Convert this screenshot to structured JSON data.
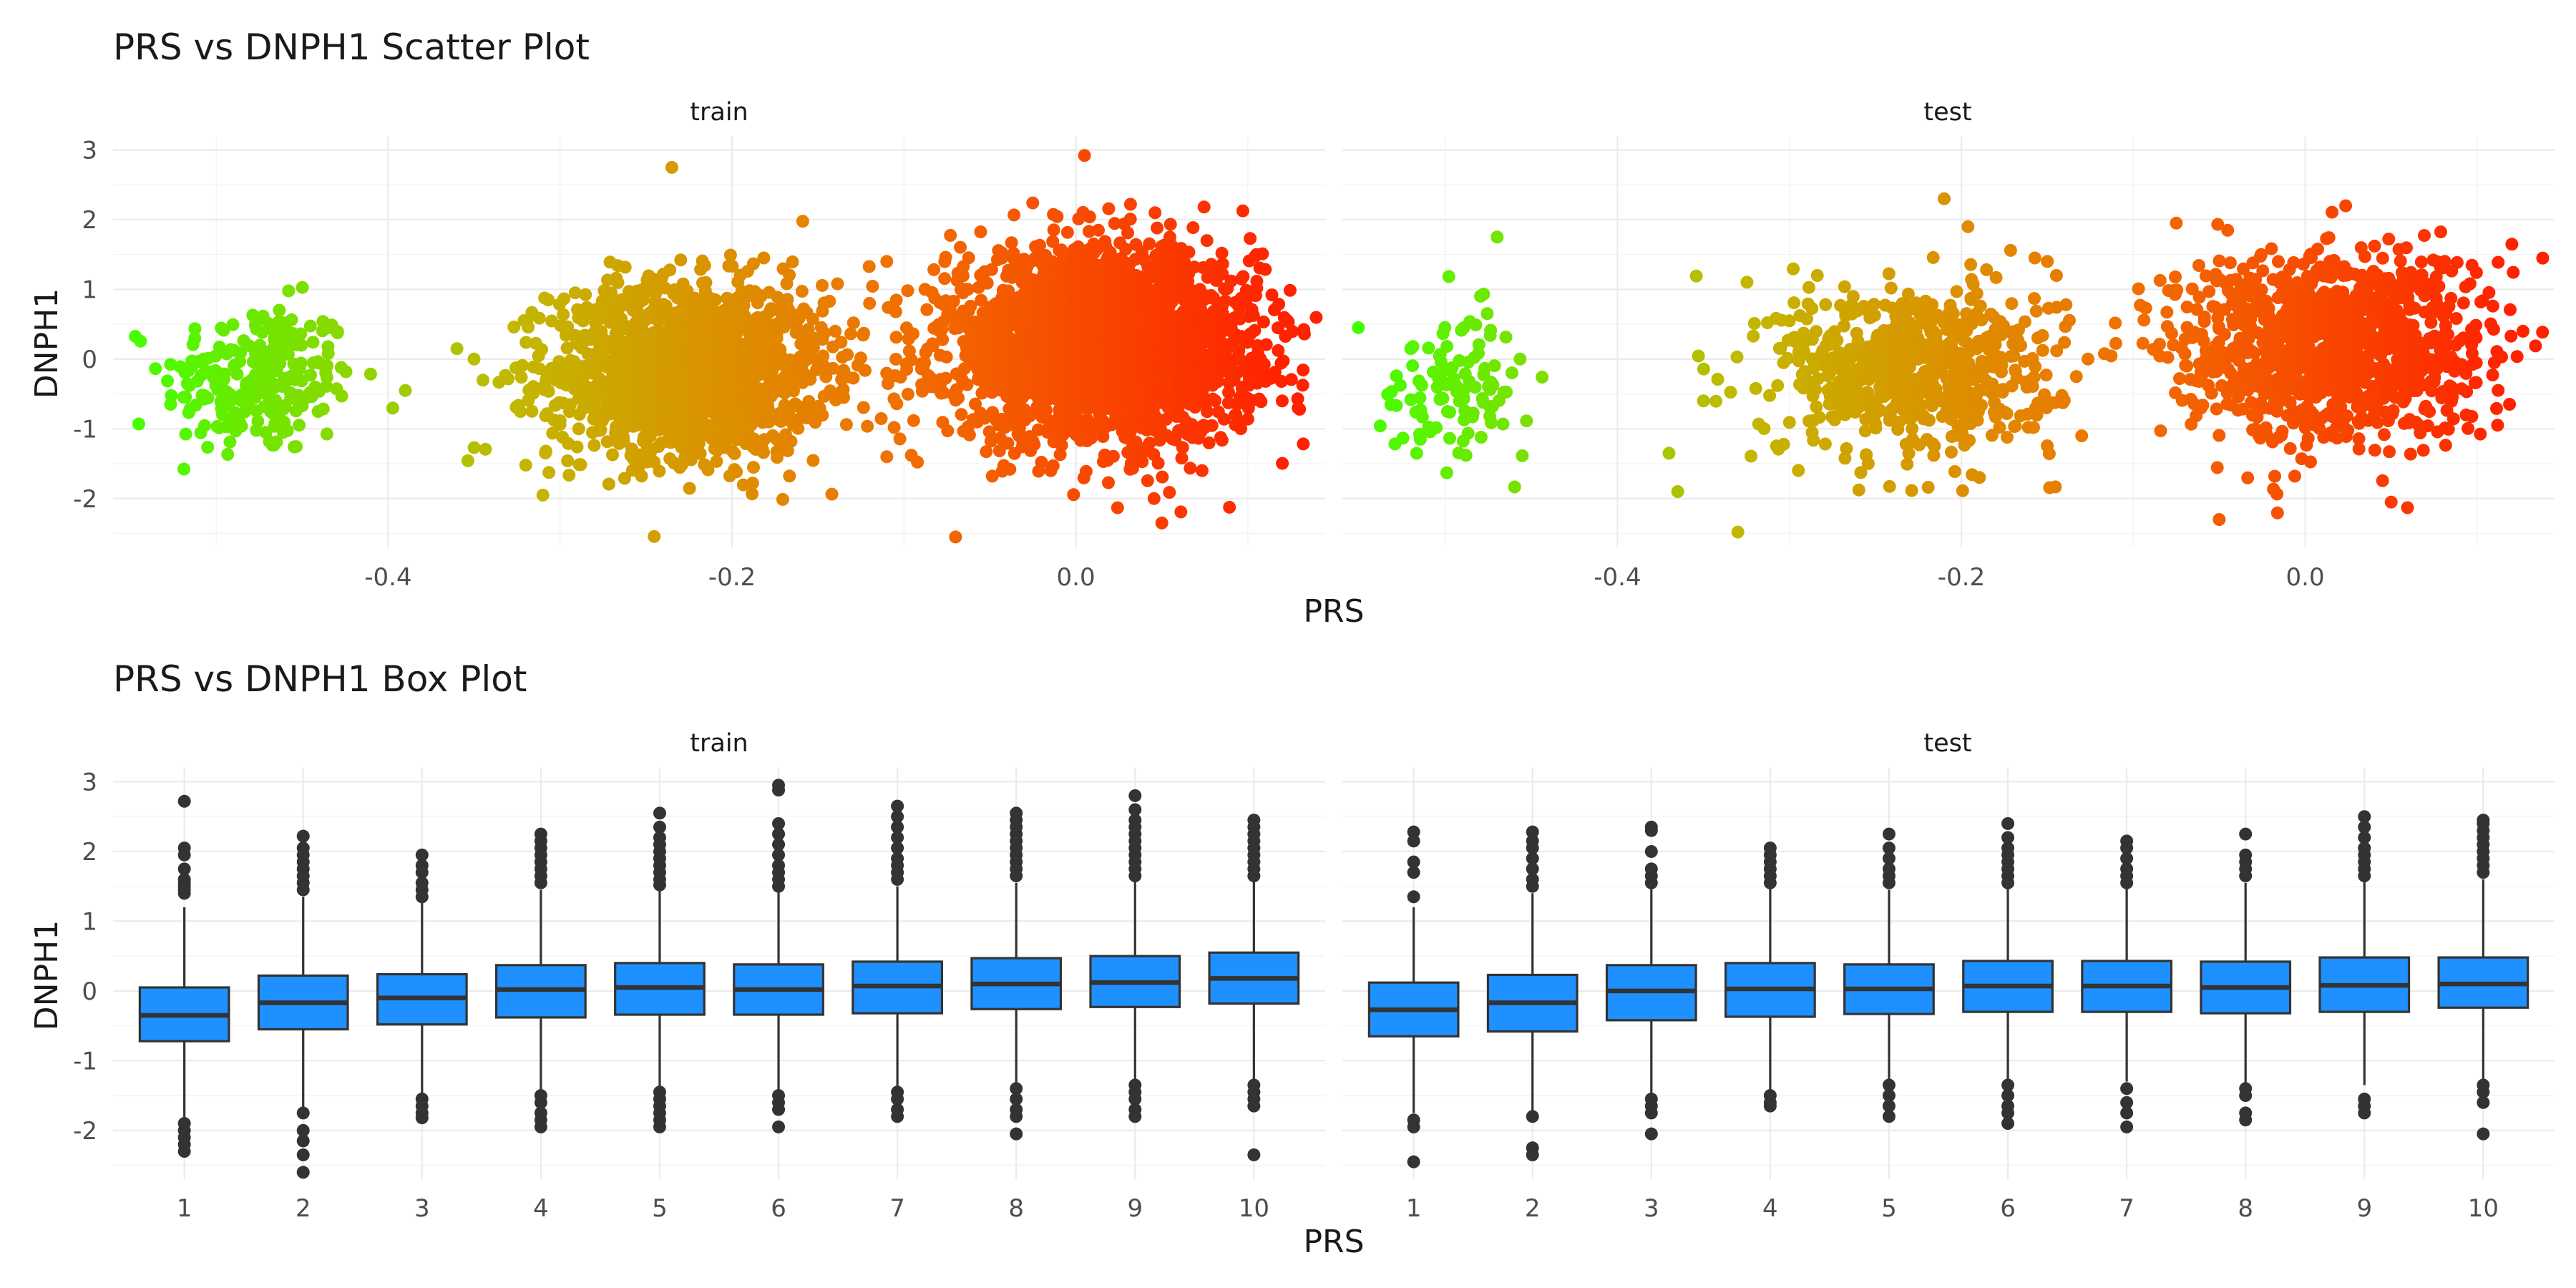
{
  "chart_data": [
    {
      "type": "scatter",
      "title": "PRS vs DNPH1 Scatter Plot",
      "xlabel": "PRS",
      "ylabel": "DNPH1",
      "xlim": [
        -0.56,
        0.145
      ],
      "ylim": [
        -2.7,
        3.2
      ],
      "x_ticks": [
        "-0.4",
        "-0.2",
        "0.0"
      ],
      "y_ticks": [
        "3",
        "2",
        "1",
        "0",
        "-1",
        "-2"
      ],
      "color_gradient": [
        "#44ff00",
        "#c2b800",
        "#f07000",
        "#ff2200"
      ],
      "grid": true,
      "panels": [
        {
          "name": "train",
          "clusters": [
            {
              "center": [
                -0.475,
                -0.3
              ],
              "sd": [
                0.028,
                0.55
              ],
              "n": 240
            },
            {
              "center": [
                -0.225,
                -0.15
              ],
              "sd": [
                0.04,
                0.62
              ],
              "n": 1500
            },
            {
              "center": [
                0.015,
                0.2
              ],
              "sd": [
                0.045,
                0.68
              ],
              "n": 2500
            }
          ],
          "outliers": [
            {
              "x": -0.545,
              "y": -0.93
            },
            {
              "x": -0.39,
              "y": -0.45
            },
            {
              "x": -0.36,
              "y": 0.15
            },
            {
              "x": -0.35,
              "y": -1.27
            },
            {
              "x": -0.32,
              "y": -1.52
            },
            {
              "x": -0.31,
              "y": -1.95
            },
            {
              "x": -0.235,
              "y": 2.75
            },
            {
              "x": -0.14,
              "y": 0.4
            },
            {
              "x": -0.12,
              "y": 0.8
            },
            {
              "x": -0.11,
              "y": 1.4
            },
            {
              "x": -0.11,
              "y": -1.4
            },
            {
              "x": -0.07,
              "y": -2.55
            },
            {
              "x": 0.005,
              "y": 2.92
            },
            {
              "x": 0.05,
              "y": -2.35
            },
            {
              "x": 0.105,
              "y": 1.5
            },
            {
              "x": 0.12,
              "y": -0.6
            }
          ]
        },
        {
          "name": "test",
          "clusters": [
            {
              "center": [
                -0.495,
                -0.35
              ],
              "sd": [
                0.022,
                0.5
              ],
              "n": 110
            },
            {
              "center": [
                -0.225,
                -0.15
              ],
              "sd": [
                0.04,
                0.62
              ],
              "n": 650
            },
            {
              "center": [
                0.015,
                0.2
              ],
              "sd": [
                0.045,
                0.68
              ],
              "n": 1100
            }
          ],
          "outliers": [
            {
              "x": -0.47,
              "y": 1.75
            },
            {
              "x": -0.37,
              "y": -1.35
            },
            {
              "x": -0.365,
              "y": -1.9
            },
            {
              "x": -0.35,
              "y": -0.6
            },
            {
              "x": -0.33,
              "y": -2.48
            },
            {
              "x": -0.3,
              "y": 0.55
            },
            {
              "x": -0.21,
              "y": 2.3
            },
            {
              "x": -0.15,
              "y": 1.4
            },
            {
              "x": -0.13,
              "y": -1.1
            },
            {
              "x": -0.075,
              "y": 1.95
            },
            {
              "x": -0.05,
              "y": -2.3
            },
            {
              "x": 0.05,
              "y": -2.05
            },
            {
              "x": 0.11,
              "y": -0.05
            }
          ]
        }
      ]
    },
    {
      "type": "box",
      "title": "PRS vs DNPH1 Box Plot",
      "xlabel": "PRS",
      "ylabel": "DNPH1",
      "ylim": [
        -2.7,
        3.2
      ],
      "y_ticks": [
        "3",
        "2",
        "1",
        "0",
        "-1",
        "-2"
      ],
      "categories": [
        "1",
        "2",
        "3",
        "4",
        "5",
        "6",
        "7",
        "8",
        "9",
        "10"
      ],
      "box_color": "#1e90ff",
      "grid": true,
      "panels": [
        {
          "name": "train",
          "boxes": [
            {
              "q1": -0.72,
              "median": -0.35,
              "q3": 0.05,
              "whisker_low": -1.85,
              "whisker_high": 1.2,
              "outliers": [
                2.72,
                2.05,
                1.95,
                1.75,
                1.6,
                1.55,
                1.5,
                1.45,
                1.4,
                -1.9,
                -2.0,
                -2.1,
                -2.2,
                -2.3
              ]
            },
            {
              "q1": -0.55,
              "median": -0.17,
              "q3": 0.22,
              "whisker_low": -1.7,
              "whisker_high": 1.35,
              "outliers": [
                2.22,
                2.05,
                1.95,
                1.85,
                1.75,
                1.65,
                1.55,
                1.45,
                -1.75,
                -2.0,
                -2.15,
                -2.35,
                -2.6
              ]
            },
            {
              "q1": -0.48,
              "median": -0.1,
              "q3": 0.24,
              "whisker_low": -1.5,
              "whisker_high": 1.3,
              "outliers": [
                1.95,
                1.8,
                1.7,
                1.55,
                1.45,
                1.35,
                -1.55,
                -1.65,
                -1.75,
                -1.82
              ]
            },
            {
              "q1": -0.38,
              "median": 0.02,
              "q3": 0.37,
              "whisker_low": -1.45,
              "whisker_high": 1.45,
              "outliers": [
                2.25,
                2.15,
                2.05,
                1.95,
                1.85,
                1.75,
                1.65,
                1.55,
                -1.5,
                -1.6,
                -1.75,
                -1.85,
                -1.95
              ]
            },
            {
              "q1": -0.34,
              "median": 0.05,
              "q3": 0.4,
              "whisker_low": -1.4,
              "whisker_high": 1.5,
              "outliers": [
                2.55,
                2.35,
                2.2,
                2.1,
                2.0,
                1.9,
                1.8,
                1.7,
                1.6,
                1.52,
                -1.45,
                -1.55,
                -1.65,
                -1.75,
                -1.85,
                -1.95
              ]
            },
            {
              "q1": -0.34,
              "median": 0.02,
              "q3": 0.38,
              "whisker_low": -1.45,
              "whisker_high": 1.45,
              "outliers": [
                2.95,
                2.88,
                2.4,
                2.25,
                2.1,
                1.95,
                1.8,
                1.7,
                1.6,
                1.5,
                -1.5,
                -1.6,
                -1.7,
                -1.95
              ]
            },
            {
              "q1": -0.32,
              "median": 0.07,
              "q3": 0.42,
              "whisker_low": -1.4,
              "whisker_high": 1.5,
              "outliers": [
                2.65,
                2.5,
                2.35,
                2.2,
                2.05,
                1.9,
                1.8,
                1.7,
                1.6,
                -1.45,
                -1.55,
                -1.7,
                -1.8
              ]
            },
            {
              "q1": -0.26,
              "median": 0.1,
              "q3": 0.47,
              "whisker_low": -1.35,
              "whisker_high": 1.55,
              "outliers": [
                2.55,
                2.45,
                2.35,
                2.25,
                2.15,
                2.05,
                1.95,
                1.85,
                1.75,
                1.65,
                -1.4,
                -1.55,
                -1.7,
                -1.8,
                -2.05
              ]
            },
            {
              "q1": -0.23,
              "median": 0.12,
              "q3": 0.5,
              "whisker_low": -1.3,
              "whisker_high": 1.6,
              "outliers": [
                2.8,
                2.6,
                2.45,
                2.35,
                2.25,
                2.15,
                2.05,
                1.95,
                1.85,
                1.75,
                1.65,
                -1.35,
                -1.45,
                -1.55,
                -1.7,
                -1.8
              ]
            },
            {
              "q1": -0.18,
              "median": 0.18,
              "q3": 0.55,
              "whisker_low": -1.3,
              "whisker_high": 1.6,
              "outliers": [
                2.45,
                2.35,
                2.25,
                2.15,
                2.05,
                1.95,
                1.85,
                1.75,
                1.65,
                -1.35,
                -1.45,
                -1.55,
                -1.65,
                -2.35
              ]
            }
          ]
        },
        {
          "name": "test",
          "boxes": [
            {
              "q1": -0.65,
              "median": -0.27,
              "q3": 0.12,
              "whisker_low": -1.75,
              "whisker_high": 1.2,
              "outliers": [
                2.28,
                2.15,
                1.85,
                1.7,
                1.35,
                -1.85,
                -1.95,
                -2.45
              ]
            },
            {
              "q1": -0.58,
              "median": -0.17,
              "q3": 0.23,
              "whisker_low": -1.75,
              "whisker_high": 1.4,
              "outliers": [
                2.28,
                2.15,
                2.05,
                1.9,
                1.75,
                1.6,
                1.5,
                -1.8,
                -2.25,
                -2.35
              ]
            },
            {
              "q1": -0.42,
              "median": 0.0,
              "q3": 0.37,
              "whisker_low": -1.5,
              "whisker_high": 1.5,
              "outliers": [
                2.35,
                2.3,
                2.0,
                1.75,
                1.65,
                1.55,
                -1.55,
                -1.65,
                -1.75,
                -2.05
              ]
            },
            {
              "q1": -0.37,
              "median": 0.03,
              "q3": 0.4,
              "whisker_low": -1.45,
              "whisker_high": 1.5,
              "outliers": [
                2.05,
                1.95,
                1.85,
                1.75,
                1.65,
                1.55,
                -1.5,
                -1.6,
                -1.65
              ]
            },
            {
              "q1": -0.33,
              "median": 0.03,
              "q3": 0.38,
              "whisker_low": -1.3,
              "whisker_high": 1.45,
              "outliers": [
                2.25,
                2.05,
                1.9,
                1.75,
                1.65,
                1.55,
                -1.35,
                -1.5,
                -1.65,
                -1.8
              ]
            },
            {
              "q1": -0.3,
              "median": 0.07,
              "q3": 0.43,
              "whisker_low": -1.3,
              "whisker_high": 1.5,
              "outliers": [
                2.4,
                2.2,
                2.05,
                1.95,
                1.85,
                1.75,
                1.65,
                1.55,
                -1.35,
                -1.5,
                -1.65,
                -1.75,
                -1.9
              ]
            },
            {
              "q1": -0.3,
              "median": 0.07,
              "q3": 0.43,
              "whisker_low": -1.3,
              "whisker_high": 1.5,
              "outliers": [
                2.15,
                2.05,
                1.9,
                1.75,
                1.65,
                1.55,
                -1.4,
                -1.6,
                -1.75,
                -1.95
              ]
            },
            {
              "q1": -0.32,
              "median": 0.05,
              "q3": 0.42,
              "whisker_low": -1.35,
              "whisker_high": 1.55,
              "outliers": [
                2.25,
                1.95,
                1.85,
                1.75,
                1.65,
                -1.4,
                -1.5,
                -1.75,
                -1.85
              ]
            },
            {
              "q1": -0.3,
              "median": 0.08,
              "q3": 0.48,
              "whisker_low": -1.35,
              "whisker_high": 1.6,
              "outliers": [
                2.5,
                2.35,
                2.2,
                2.05,
                1.95,
                1.85,
                1.75,
                1.65,
                -1.55,
                -1.65,
                -1.75
              ]
            },
            {
              "q1": -0.24,
              "median": 0.1,
              "q3": 0.48,
              "whisker_low": -1.3,
              "whisker_high": 1.6,
              "outliers": [
                2.45,
                2.4,
                2.3,
                2.2,
                2.1,
                2.0,
                1.9,
                1.8,
                1.7,
                -1.35,
                -1.45,
                -1.6,
                -2.05
              ]
            }
          ]
        }
      ]
    }
  ]
}
